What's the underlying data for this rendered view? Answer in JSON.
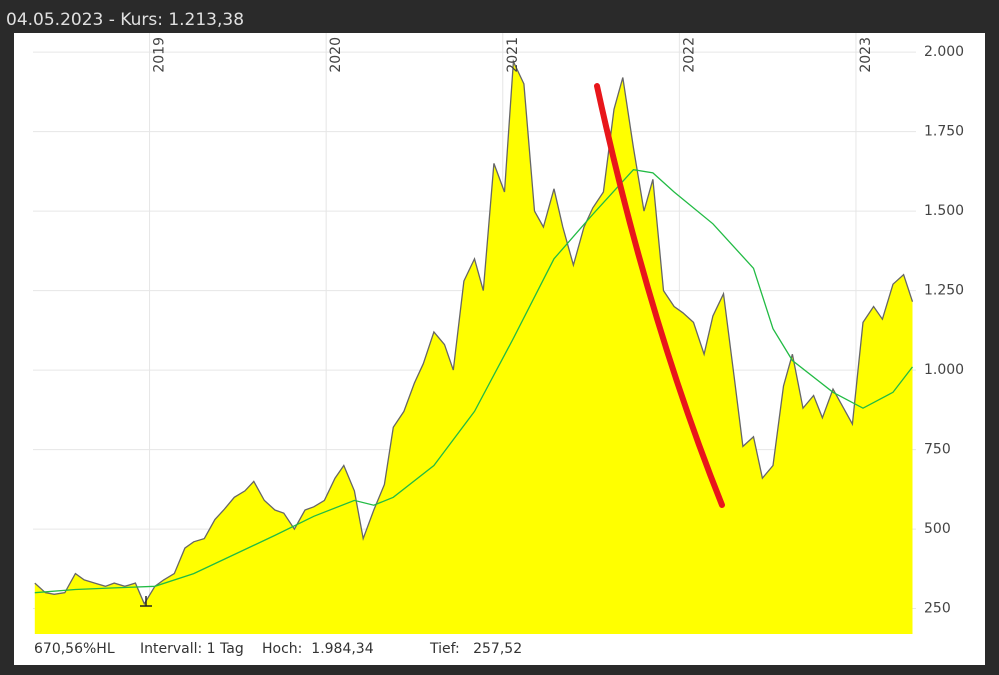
{
  "header": {
    "title": "04.05.2023  -  Kurs: 1.213,38"
  },
  "chart_data": {
    "type": "area",
    "xlim": [
      2018.34,
      2023.34
    ],
    "xticks": [
      2019,
      2020,
      2021,
      2022,
      2023
    ],
    "ylim": [
      170,
      2060
    ],
    "yticks": [
      {
        "value": 250,
        "label": "250"
      },
      {
        "value": 500,
        "label": "500"
      },
      {
        "value": 750,
        "label": "750"
      },
      {
        "value": 1000,
        "label": "1.000"
      },
      {
        "value": 1250,
        "label": "1.250"
      },
      {
        "value": 1500,
        "label": "1.500"
      },
      {
        "value": 1750,
        "label": "1.750"
      },
      {
        "value": 2000,
        "label": "2.000"
      }
    ],
    "grid": true,
    "series": [
      {
        "color": "#ffff00",
        "line_color": "#666666",
        "x": [
          2018.35,
          2018.41,
          2018.46,
          2018.52,
          2018.58,
          2018.63,
          2018.69,
          2018.75,
          2018.8,
          2018.86,
          2018.92,
          2018.97,
          2019.03,
          2019.08,
          2019.14,
          2019.2,
          2019.25,
          2019.31,
          2019.37,
          2019.42,
          2019.48,
          2019.54,
          2019.59,
          2019.65,
          2019.71,
          2019.76,
          2019.82,
          2019.88,
          2019.93,
          2019.99,
          2020.05,
          2020.1,
          2020.16,
          2020.21,
          2020.27,
          2020.33,
          2020.38,
          2020.44,
          2020.5,
          2020.55,
          2020.61,
          2020.67,
          2020.72,
          2020.78,
          2020.84,
          2020.89,
          2020.95,
          2021.01,
          2021.06,
          2021.12,
          2021.18,
          2021.23,
          2021.29,
          2021.34,
          2021.4,
          2021.46,
          2021.51,
          2021.57,
          2021.63,
          2021.68,
          2021.74,
          2021.8,
          2021.85,
          2021.91,
          2021.97,
          2022.02,
          2022.08,
          2022.14,
          2022.19,
          2022.25,
          2022.31,
          2022.36,
          2022.42,
          2022.47,
          2022.53,
          2022.59,
          2022.64,
          2022.7,
          2022.76,
          2022.81,
          2022.87,
          2022.93,
          2022.98,
          2023.04,
          2023.1,
          2023.15,
          2023.21,
          2023.27,
          2023.32
        ],
        "values": [
          330,
          300,
          295,
          300,
          360,
          340,
          330,
          320,
          330,
          320,
          330,
          265,
          320,
          340,
          360,
          440,
          460,
          470,
          530,
          560,
          600,
          620,
          650,
          590,
          560,
          550,
          500,
          560,
          570,
          590,
          660,
          700,
          620,
          470,
          560,
          640,
          820,
          870,
          960,
          1020,
          1120,
          1080,
          1000,
          1280,
          1350,
          1250,
          1650,
          1560,
          1970,
          1900,
          1500,
          1450,
          1570,
          1450,
          1330,
          1450,
          1510,
          1560,
          1820,
          1920,
          1700,
          1500,
          1600,
          1250,
          1200,
          1180,
          1150,
          1050,
          1170,
          1240,
          980,
          760,
          790,
          660,
          700,
          950,
          1050,
          880,
          920,
          850,
          940,
          880,
          830,
          1150,
          1200,
          1160,
          1270,
          1300,
          1215
        ]
      },
      {
        "color": "#22bb44",
        "x": [
          2018.35,
          2018.58,
          2018.8,
          2019.03,
          2019.25,
          2019.48,
          2019.71,
          2019.93,
          2020.16,
          2020.27,
          2020.38,
          2020.61,
          2020.84,
          2021.06,
          2021.29,
          2021.51,
          2021.74,
          2021.85,
          2021.97,
          2022.19,
          2022.42,
          2022.53,
          2022.64,
          2022.87,
          2023.04,
          2023.21,
          2023.32
        ],
        "values": [
          300,
          310,
          315,
          320,
          360,
          420,
          480,
          540,
          590,
          575,
          600,
          700,
          870,
          1100,
          1350,
          1490,
          1630,
          1620,
          1560,
          1460,
          1320,
          1130,
          1030,
          930,
          880,
          930,
          1010
        ]
      }
    ]
  },
  "footer": {
    "items": [
      "670,56%HL",
      "Intervall: 1 Tag",
      "Hoch:  1.984,34",
      "Tief:   257,52"
    ]
  }
}
